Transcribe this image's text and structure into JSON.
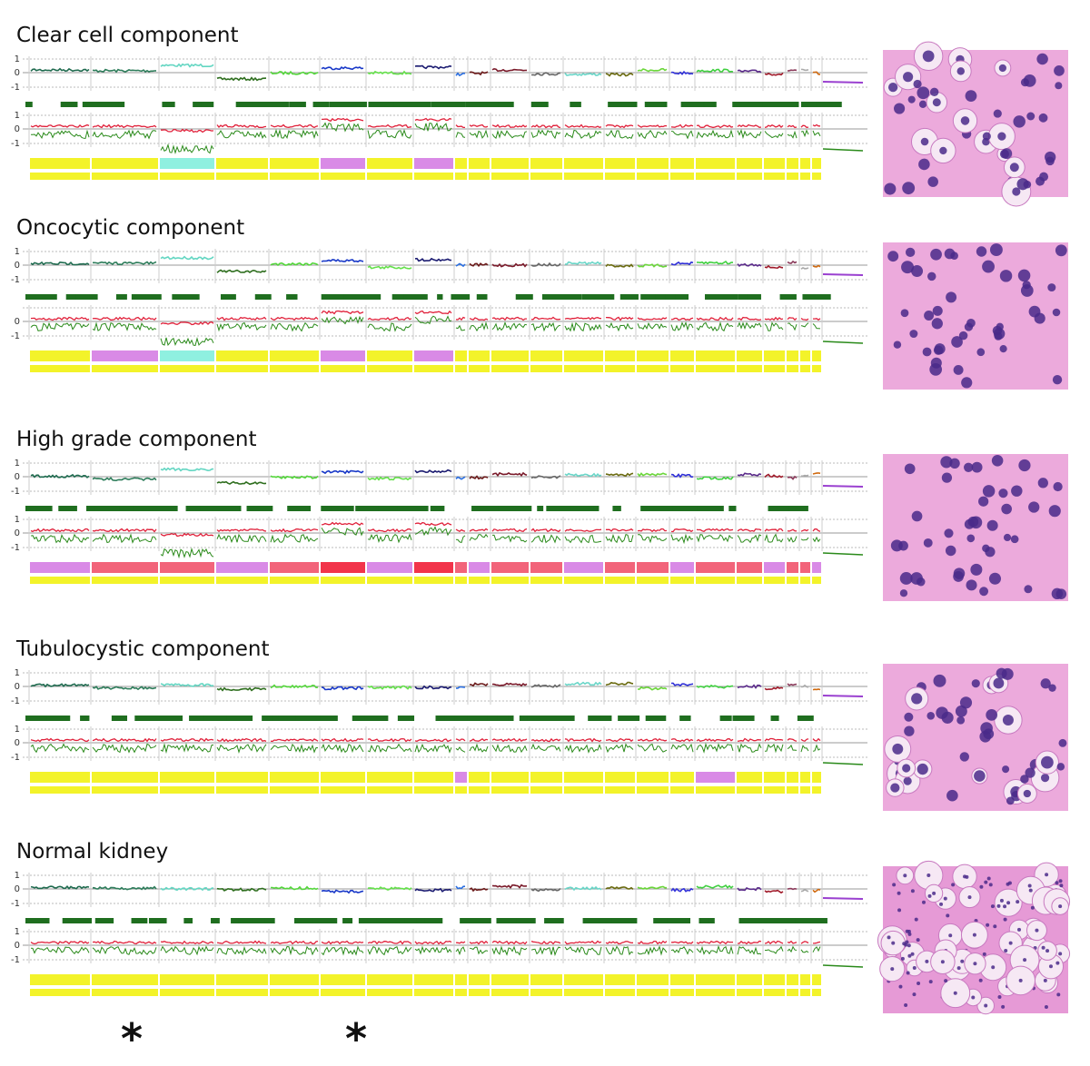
{
  "panels": [
    {
      "title": "Clear cell component",
      "top_ticks": [
        "1",
        "0",
        "-1"
      ],
      "bottom_ticks": [
        "1",
        "0",
        "-1"
      ]
    },
    {
      "title": "Oncocytic component",
      "top_ticks": [
        "1",
        "0",
        "-1"
      ],
      "bottom_ticks": [
        "0",
        "-1"
      ]
    },
    {
      "title": "High grade component",
      "top_ticks": [
        "1",
        "0",
        "-1"
      ],
      "bottom_ticks": [
        "1",
        "0",
        "-1"
      ]
    },
    {
      "title": "Tubulocystic component",
      "top_ticks": [
        "1",
        "0",
        "-1"
      ],
      "bottom_ticks": [
        "1",
        "0",
        "-1"
      ]
    },
    {
      "title": "Normal kidney",
      "top_ticks": [
        "1",
        "0",
        "-1"
      ],
      "bottom_ticks": [
        "1",
        "0",
        "-1"
      ]
    }
  ],
  "markers": [
    "*",
    "*"
  ]
}
